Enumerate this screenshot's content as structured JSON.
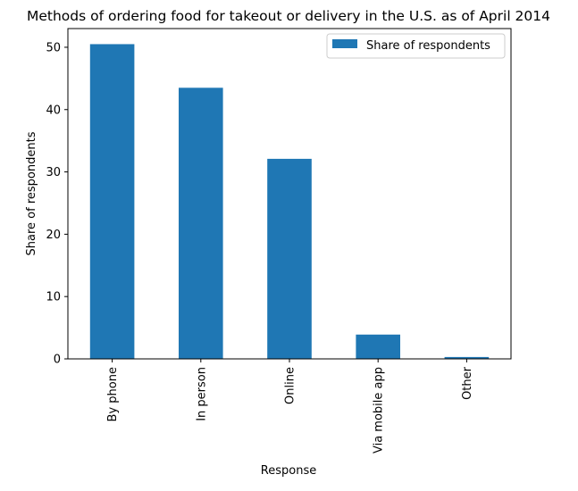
{
  "chart_data": {
    "type": "bar",
    "title": "Methods of ordering food for takeout or delivery in the U.S. as of April 2014",
    "xlabel": "Response",
    "ylabel": "Share of respondents",
    "categories": [
      "By phone",
      "In person",
      "Online",
      "Via mobile app",
      "Other"
    ],
    "series": [
      {
        "name": "Share of respondents",
        "values": [
          50.5,
          43.5,
          32.1,
          3.9,
          0.3
        ],
        "color": "#1f77b4"
      }
    ],
    "ylim": [
      0,
      53
    ],
    "yticks": [
      "0",
      "10",
      "20",
      "30",
      "40",
      "50"
    ],
    "grid": false,
    "legend_position": "top-right"
  }
}
